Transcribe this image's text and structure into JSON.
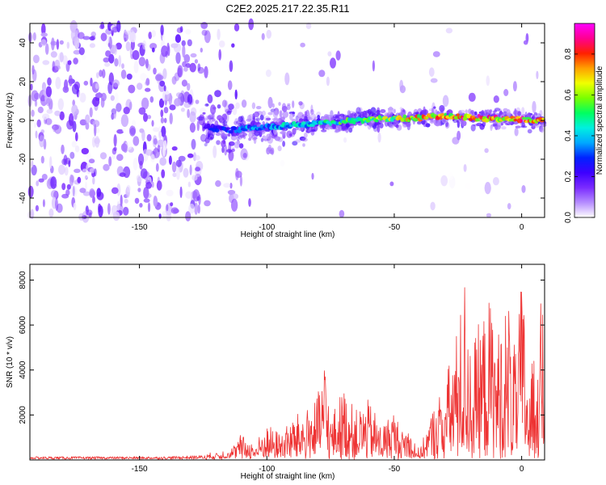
{
  "title": "C2E2.2025.217.22.35.R11",
  "colors": {
    "snr_line": "#ee3333",
    "axis": "#000000"
  },
  "chart_data": [
    {
      "type": "heatmap",
      "xlabel": "Height of straight line (km)",
      "ylabel": "Frequency (Hz)",
      "xlim": [
        -193,
        9
      ],
      "ylim": [
        -50,
        50
      ],
      "x_ticks": [
        -150,
        -100,
        -50,
        0
      ],
      "y_ticks": [
        -40,
        -20,
        0,
        20,
        40
      ],
      "grid": false,
      "colorbar": {
        "label": "Normalized spectral amplitude",
        "range": [
          0,
          0.95
        ],
        "ticks": [
          0.0,
          0.2,
          0.4,
          0.6,
          0.8
        ],
        "colormap": [
          "#ffffff",
          "#b58cff",
          "#7a2bff",
          "#3d00ff",
          "#0022ff",
          "#00a8ff",
          "#00f0e0",
          "#00ff60",
          "#7aff00",
          "#f0ff00",
          "#ffa000",
          "#ff2000",
          "#ff0090",
          "#ff00ff"
        ]
      },
      "ridge": {
        "x": [
          -125,
          -115,
          -105,
          -95,
          -85,
          -75,
          -65,
          -55,
          -45,
          -35,
          -25,
          -15,
          -5,
          5,
          9
        ],
        "frequency": [
          -3,
          -5,
          -4,
          -3,
          -2,
          -1,
          0,
          1,
          1,
          2,
          2,
          1,
          1,
          0,
          0
        ],
        "amplitude": [
          0.25,
          0.35,
          0.4,
          0.45,
          0.5,
          0.55,
          0.6,
          0.65,
          0.75,
          0.8,
          0.85,
          0.9,
          0.9,
          0.85,
          0.8
        ]
      }
    },
    {
      "type": "line",
      "xlabel": "Height of straight line (km)",
      "ylabel": "SNR (10 * v/v)",
      "xlim": [
        -193,
        9
      ],
      "ylim": [
        0,
        8700
      ],
      "x_ticks": [
        -150,
        -100,
        -50,
        0
      ],
      "y_ticks": [
        2000,
        4000,
        6000,
        8000
      ],
      "grid": false,
      "series": [
        {
          "color": "#ee3333",
          "x": [
            -193,
            -180,
            -160,
            -140,
            -125,
            -118,
            -113,
            -110,
            -105,
            -100,
            -95,
            -90,
            -85,
            -80,
            -77,
            -75,
            -70,
            -65,
            -60,
            -55,
            -50,
            -47,
            -45,
            -40,
            -37,
            -35,
            -30,
            -25,
            -22,
            -20,
            -15,
            -12,
            -10,
            -5,
            -2,
            0,
            3,
            6,
            9
          ],
          "y": [
            100,
            100,
            100,
            100,
            150,
            300,
            600,
            1100,
            600,
            1500,
            1200,
            1800,
            2200,
            2800,
            4700,
            1800,
            3200,
            2200,
            2600,
            1500,
            2200,
            1200,
            1600,
            300,
            1500,
            2200,
            3500,
            6000,
            8400,
            5000,
            6500,
            7300,
            5500,
            7200,
            4300,
            8600,
            3000,
            6500,
            7400
          ]
        }
      ]
    }
  ]
}
